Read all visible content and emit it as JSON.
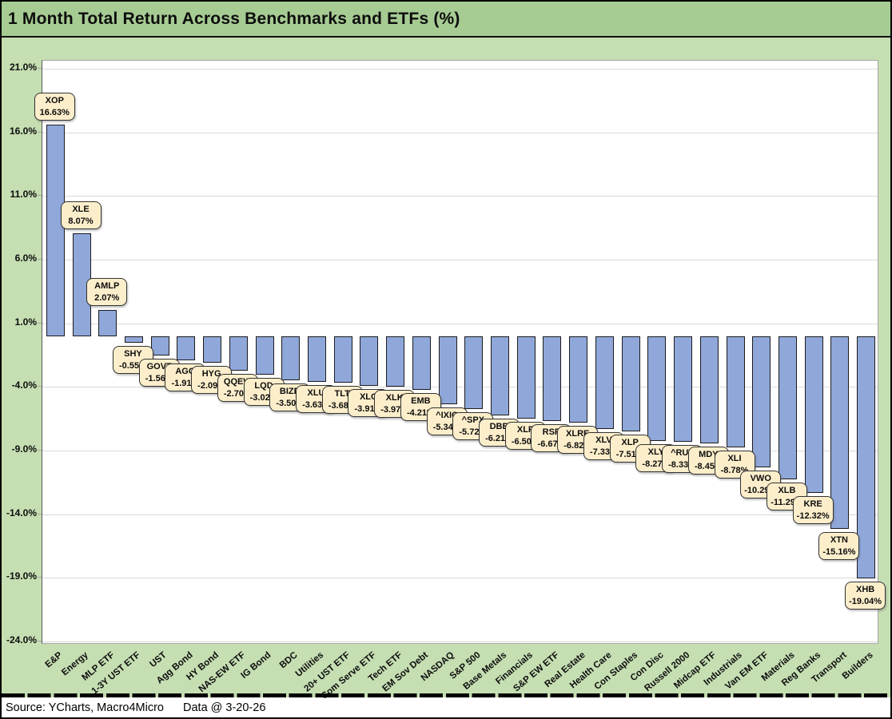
{
  "title": "1 Month Total Return Across Benchmarks and ETFs (%)",
  "footer": {
    "source": "Source: YCharts, Macro4Micro",
    "data_date": "Data @ 3-20-26"
  },
  "colors": {
    "frame_background": "#c5deb2",
    "title_bar_background": "#a6cc93",
    "plot_background": "#ffffff",
    "bar_fill": "#8fa7d9",
    "bar_border": "#1c1c1c",
    "callout_fill": "#fceecb",
    "callout_border": "#333333",
    "gridline": "#d9d9d9",
    "text": "#0d0d0d"
  },
  "chart_data": {
    "type": "bar",
    "title": "1 Month Total Return Across Benchmarks and ETFs (%)",
    "xlabel": "",
    "ylabel": "",
    "ylim": [
      -24.0,
      21.0
    ],
    "grid": true,
    "legend": "none",
    "yticks": [
      "21.0%",
      "16.0%",
      "11.0%",
      "6.0%",
      "1.0%",
      "-4.0%",
      "-9.0%",
      "-14.0%",
      "-19.0%",
      "-24.0%"
    ],
    "categories": [
      "E&P",
      "Energy",
      "MLP ETF",
      "1-3Y UST ETF",
      "UST",
      "Agg Bond",
      "HY Bond",
      "NAS-EW ETF",
      "IG Bond",
      "BDC",
      "Utilities",
      "20+ UST ETF",
      "Com Serve ETF",
      "Tech ETF",
      "EM Sov Debt",
      "NASDAQ",
      "S&P 500",
      "Base Metals",
      "Financials",
      "S&P EW ETF",
      "Real Estate",
      "Health Care",
      "Con Staples",
      "Con Disc",
      "Russell 2000",
      "Midcap ETF",
      "Industrials",
      "Van EM ETF",
      "Materials",
      "Reg Banks",
      "Transport",
      "Builders"
    ],
    "tickers": [
      "XOP",
      "XLE",
      "AMLP",
      "SHY",
      "GOVT",
      "AGG",
      "HYG",
      "QQEW",
      "LQD",
      "BIZD",
      "XLU",
      "TLT",
      "XLC",
      "XLK",
      "EMB",
      "^IXIC",
      "^SPX",
      "DBB",
      "XLF",
      "RSP",
      "XLRE",
      "XLV",
      "XLP",
      "XLY",
      "^RUT",
      "MDY",
      "XLI",
      "VWO",
      "XLB",
      "KRE",
      "XTN",
      "XHB"
    ],
    "values": [
      16.63,
      8.07,
      2.07,
      -0.55,
      -1.56,
      -1.91,
      -2.09,
      -2.7,
      -3.02,
      -3.5,
      -3.63,
      -3.68,
      -3.91,
      -3.97,
      -4.21,
      -5.34,
      -5.72,
      -6.21,
      -6.5,
      -6.67,
      -6.82,
      -7.33,
      -7.51,
      -8.27,
      -8.33,
      -8.45,
      -8.78,
      -10.29,
      -11.29,
      -12.32,
      -15.16,
      -19.04
    ],
    "value_labels": [
      "16.63%",
      "8.07%",
      "2.07%",
      "-0.55%",
      "-1.56%",
      "-1.91%",
      "-2.09%",
      "-2.70%",
      "-3.02%",
      "-3.50%",
      "-3.63%",
      "-3.68%",
      "-3.91%",
      "-3.97%",
      "-4.21%",
      "-5.34%",
      "-5.72%",
      "-6.21%",
      "-6.50%",
      "-6.67%",
      "-6.82%",
      "-7.33%",
      "-7.51%",
      "-8.27%",
      "-8.33%",
      "-8.45%",
      "-8.78%",
      "-10.29%",
      "-11.29%",
      "-12.32%",
      "-15.16%",
      "-19.04%"
    ]
  }
}
